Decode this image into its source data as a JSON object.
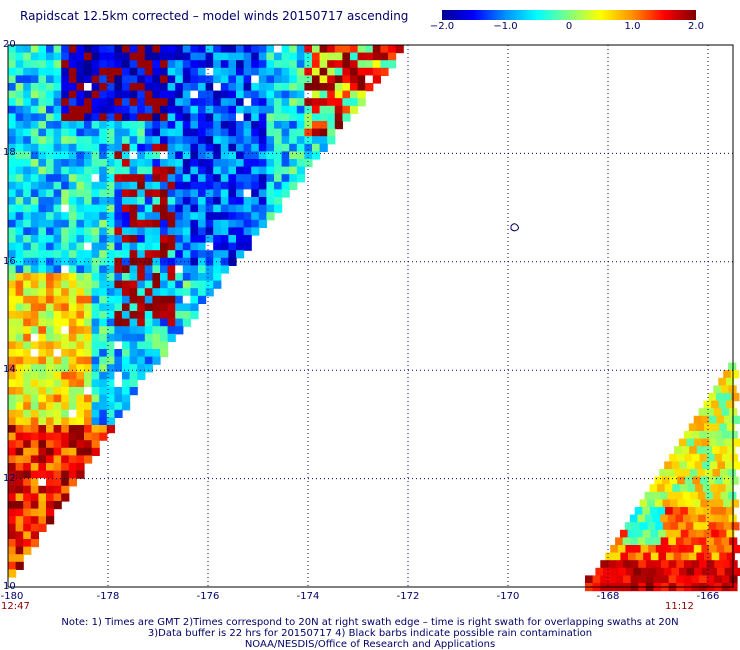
{
  "title": "Rapidscat 12.5km corrected – model winds 20150717 ascending",
  "colorbar": {
    "labels": [
      "−2.0",
      "−1.0",
      "0",
      "1.0",
      "2.0"
    ],
    "values": [
      -2.0,
      -1.0,
      0,
      1.0,
      2.0
    ],
    "min": -2.0,
    "max": 2.0,
    "colors": [
      "#000090",
      "#0000ff",
      "#0090ff",
      "#00ffff",
      "#80ff80",
      "#ffff00",
      "#ff9000",
      "#ff0000",
      "#800000"
    ]
  },
  "axes": {
    "x_ticks": [
      "-180",
      "-178",
      "-176",
      "-174",
      "-172",
      "-170",
      "-168",
      "-166"
    ],
    "x_values": [
      -180,
      -178,
      -176,
      -174,
      -172,
      -170,
      -168,
      -166
    ],
    "y_ticks": [
      "20",
      "18",
      "16",
      "14",
      "12",
      "10"
    ],
    "y_values": [
      20,
      18,
      16,
      14,
      12,
      10
    ],
    "xlim": [
      -180,
      -165.5
    ],
    "ylim": [
      10,
      20
    ],
    "grid": "dotted"
  },
  "swath_times": {
    "left": "12:47",
    "right": "11:12"
  },
  "notes": [
    "Note: 1) Times are GMT 2)Times correspond to 20N at right swath edge – time is right swath for overlapping swaths at 20N",
    "3)Data buffer is 22 hrs for 20150717 4) Black barbs indicate possible rain contamination",
    "NOAA/NESDIS/Office of Research and Applications"
  ]
}
